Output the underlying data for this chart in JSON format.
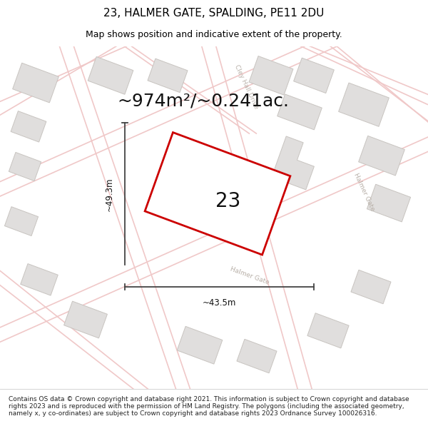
{
  "title": "23, HALMER GATE, SPALDING, PE11 2DU",
  "subtitle": "Map shows position and indicative extent of the property.",
  "area_text": "~974m²/~0.241ac.",
  "width_label": "~43.5m",
  "height_label": "~49.3m",
  "number_label": "23",
  "footer_text": "Contains OS data © Crown copyright and database right 2021. This information is subject to Crown copyright and database rights 2023 and is reproduced with the permission of HM Land Registry. The polygons (including the associated geometry, namely x, y co-ordinates) are subject to Crown copyright and database rights 2023 Ordnance Survey 100026316.",
  "bg_color": "#ffffff",
  "map_bg": "#f7f6f4",
  "road_color": "#f0c8c8",
  "building_fill": "#e0dedd",
  "building_edge": "#c8c4c0",
  "plot_fill": "#ffffff",
  "plot_edge": "#cc0000",
  "road_label_color": "#b8b0a8",
  "title_fontsize": 11,
  "subtitle_fontsize": 9,
  "area_fontsize": 18,
  "number_fontsize": 20,
  "dim_fontsize": 8.5,
  "footer_fontsize": 6.5
}
